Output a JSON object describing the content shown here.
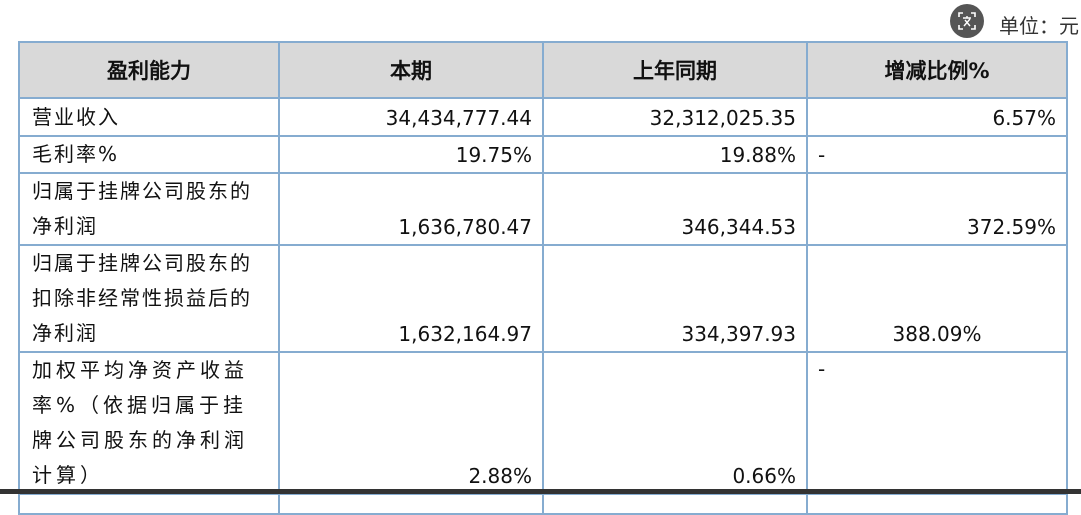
{
  "unit_label": "单位：元",
  "translate_icon": "translate-icon",
  "header": [
    "盈利能力",
    "本期",
    "上年同期",
    "增减比例%"
  ],
  "rows": [
    {
      "label": "营业收入",
      "current": "34,434,777.44",
      "prior": "32,312,025.35",
      "change": "6.57%"
    },
    {
      "label": "毛利率%",
      "current": "19.75%",
      "prior": "19.88%",
      "change": "-"
    },
    {
      "label": "归属于挂牌公司股东的净利润",
      "current": "1,636,780.47",
      "prior": "346,344.53",
      "change": "372.59%"
    },
    {
      "label": "归属于挂牌公司股东的扣除非经常性损益后的净利润",
      "current": "1,632,164.97",
      "prior": "334,397.93",
      "change": "388.09%"
    },
    {
      "label": "加权平均净资产收益率%（依据归属于挂牌公司股东的净利润计算）",
      "current": "2.88%",
      "prior": "0.66%",
      "change": "-"
    }
  ]
}
